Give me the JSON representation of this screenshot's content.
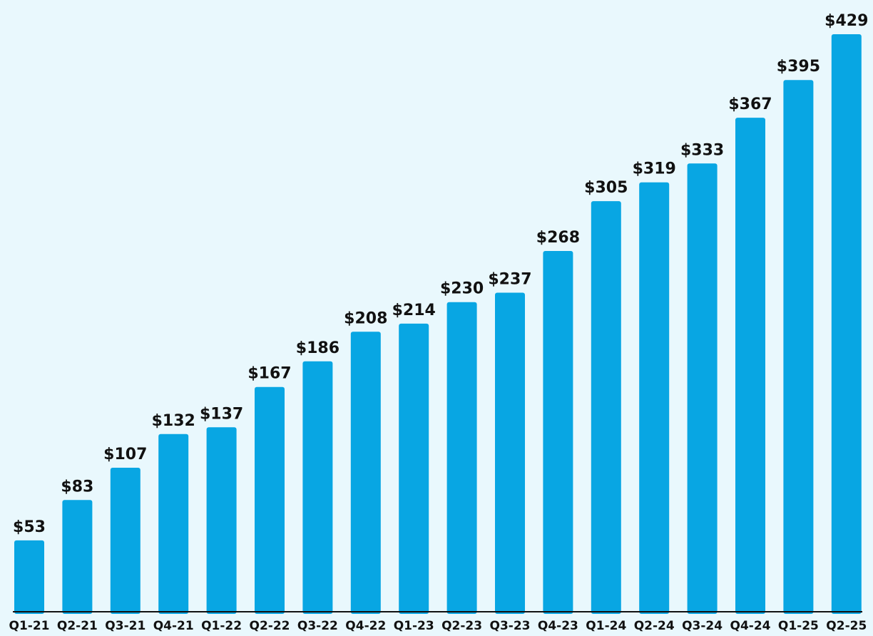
{
  "chart_data": {
    "type": "bar",
    "categories": [
      "Q1-21",
      "Q2-21",
      "Q3-21",
      "Q4-21",
      "Q1-22",
      "Q2-22",
      "Q3-22",
      "Q4-22",
      "Q1-23",
      "Q2-23",
      "Q3-23",
      "Q4-23",
      "Q1-24",
      "Q2-24",
      "Q3-24",
      "Q4-24",
      "Q1-25",
      "Q2-25"
    ],
    "values": [
      53,
      83,
      107,
      132,
      137,
      167,
      186,
      208,
      214,
      230,
      237,
      268,
      305,
      319,
      333,
      367,
      395,
      429
    ],
    "data_labels": [
      "$53",
      "$83",
      "$107",
      "$132",
      "$137",
      "$167",
      "$186",
      "$208",
      "$214",
      "$230",
      "$237",
      "$268",
      "$305",
      "$319",
      "$333",
      "$367",
      "$395",
      "$429"
    ],
    "title": "",
    "xlabel": "",
    "ylabel": "",
    "ylim": [
      0,
      429
    ],
    "grid": false,
    "legend": "none",
    "colors": {
      "bar": "#08a6e3",
      "background": "#e9f8fd",
      "axis": "#111111",
      "text": "#111111"
    }
  }
}
